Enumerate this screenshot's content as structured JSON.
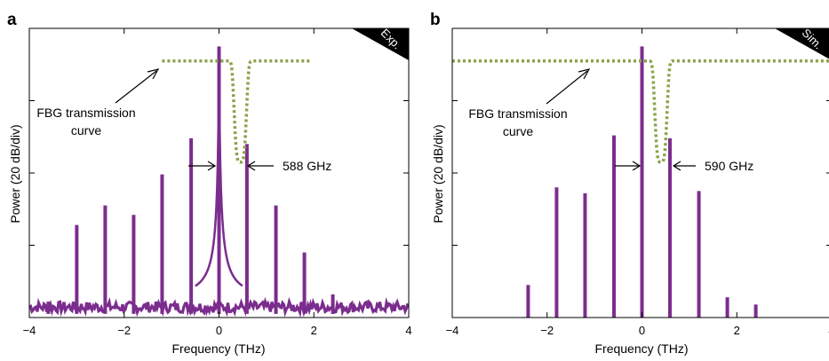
{
  "chart_data": [
    {
      "panel": "a",
      "type": "line",
      "badge": "Exp.",
      "xlabel": "Frequency (THz)",
      "ylabel": "Power (20 dB/div)",
      "xlim": [
        -4,
        4
      ],
      "xticks": [
        -4,
        -2,
        0,
        2,
        4
      ],
      "xtick_labels": [
        "−4",
        "−2",
        "0",
        "2",
        "4"
      ],
      "ylim_div": [
        0,
        4
      ],
      "grid": false,
      "spectrum_color": "#7b2d8e",
      "fbg_color": "#8aa34a",
      "lines": [
        {
          "x": -3.6,
          "y": 0.22
        },
        {
          "x": -3.0,
          "y": 1.28
        },
        {
          "x": -2.4,
          "y": 1.55
        },
        {
          "x": -1.8,
          "y": 1.42
        },
        {
          "x": -1.2,
          "y": 1.98
        },
        {
          "x": -0.588,
          "y": 2.48
        },
        {
          "x": 0.0,
          "y": 3.75
        },
        {
          "x": 0.588,
          "y": 2.4
        },
        {
          "x": 1.2,
          "y": 1.55
        },
        {
          "x": 1.8,
          "y": 0.9
        },
        {
          "x": 2.4,
          "y": 0.32
        }
      ],
      "noise_floor": 0.2,
      "fbg_curve": {
        "x_start": -1.2,
        "x_end": 1.95,
        "level": 3.55,
        "notch_center": 0.45,
        "notch_depth": 1.4,
        "notch_width": 0.12
      },
      "annotations": {
        "fbg_label_line1": "FBG transmission",
        "fbg_label_line2": "curve",
        "spacing_label": "588 GHz"
      }
    },
    {
      "panel": "b",
      "type": "line",
      "badge": "Sim.",
      "xlabel": "Frequency (THz)",
      "ylabel": "Power (20 dB/div)",
      "xlim": [
        -4,
        4
      ],
      "xticks": [
        -4,
        -2,
        0,
        2,
        4
      ],
      "xtick_labels": [
        "−4",
        "−2",
        "0",
        "2",
        "4"
      ],
      "ylim_div": [
        0,
        4
      ],
      "grid": false,
      "spectrum_color": "#7b2d8e",
      "fbg_color": "#8aa34a",
      "lines": [
        {
          "x": -2.4,
          "y": 0.45
        },
        {
          "x": -1.8,
          "y": 1.8
        },
        {
          "x": -1.2,
          "y": 1.72
        },
        {
          "x": -0.59,
          "y": 2.52
        },
        {
          "x": 0.0,
          "y": 3.75
        },
        {
          "x": 0.59,
          "y": 2.48
        },
        {
          "x": 1.2,
          "y": 1.75
        },
        {
          "x": 1.8,
          "y": 0.28
        },
        {
          "x": 2.4,
          "y": 0.18
        }
      ],
      "fbg_curve": {
        "x_start": -4.0,
        "x_end": 4.0,
        "level": 3.55,
        "notch_center": 0.4,
        "notch_depth": 1.4,
        "notch_width": 0.12
      },
      "annotations": {
        "fbg_label_line1": "FBG transmission",
        "fbg_label_line2": "curve",
        "spacing_label": "590 GHz"
      }
    }
  ]
}
